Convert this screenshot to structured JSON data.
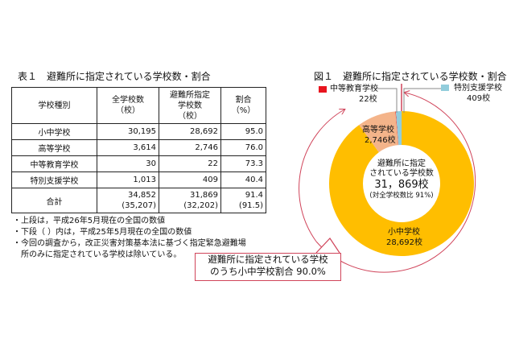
{
  "table": {
    "title": "表１　避難所に指定されている学校数・割合",
    "headers": [
      {
        "line1": "学校種別",
        "line2": "",
        "line3": ""
      },
      {
        "line1": "全学校数",
        "line2": "（校）",
        "line3": ""
      },
      {
        "line1": "避難所指定",
        "line2": "学校数",
        "line3": "（校）"
      },
      {
        "line1": "割合",
        "line2": "（%）",
        "line3": ""
      }
    ],
    "rows": [
      {
        "type": "小中学校",
        "total": "30,195",
        "designated": "28,692",
        "ratio": "95.0"
      },
      {
        "type": "高等学校",
        "total": "3,614",
        "designated": "2,746",
        "ratio": "76.0"
      },
      {
        "type": "中等教育学校",
        "total": "30",
        "designated": "22",
        "ratio": "73.3"
      },
      {
        "type": "特別支援学校",
        "total": "1,013",
        "designated": "409",
        "ratio": "40.4"
      }
    ],
    "total_row": {
      "type": "合計",
      "total": "34,852",
      "total_prev": "(35,207)",
      "designated": "31,869",
      "designated_prev": "(32,202)",
      "ratio": "91.4",
      "ratio_prev": "(91.5)"
    },
    "notes": [
      "・上段は，平成26年5月現在の全国の数値",
      "・下段（ ）内は，平成25年5月現在の全国の数値",
      "・今回の調査から，改正災害対策基本法に基づく指定緊急避難場",
      "　所のみに指定されている学校は除いている。"
    ]
  },
  "figure": {
    "title": "図１　避難所に指定されている学校数・割合",
    "center_line1": "避難所に指定",
    "center_line2": "されている学校数",
    "center_value": "31，869校",
    "center_note": "(対全学校数比 91%)",
    "labels": {
      "elementary_name": "小中学校",
      "elementary_value": "28,692校",
      "high_name": "高等学校",
      "high_value": "2,746校",
      "secondary_name": "中等教育学校",
      "secondary_value": "22校",
      "special_name": "特別支援学校",
      "special_value": "409校"
    },
    "callout_line1": "避難所に指定されている学校",
    "callout_line2": "のうち小中学校割合 90.0%",
    "colors": {
      "elementary": "#FFBE00",
      "high": "#F4B48A",
      "secondary": "#E8141E",
      "special": "#92CDDC",
      "annotation": "#D0445A"
    }
  },
  "chart_data": {
    "type": "pie",
    "variant": "donut",
    "title": "図１　避難所に指定されている学校数・割合",
    "categories": [
      "小中学校",
      "高等学校",
      "中等教育学校",
      "特別支援学校"
    ],
    "values": [
      28692,
      2746,
      22,
      409
    ],
    "total": 31869,
    "center_annotation": "避難所に指定されている学校数 31,869校 (対全学校数比 91%)",
    "callout": "避難所に指定されている学校のうち小中学校割合 90.0%",
    "legend_position": "labels on slices / leader lines",
    "table": {
      "columns": [
        "学校種別",
        "全学校数（校）",
        "避難所指定学校数（校）",
        "割合（%）"
      ],
      "rows": [
        [
          "小中学校",
          30195,
          28692,
          95.0
        ],
        [
          "高等学校",
          3614,
          2746,
          76.0
        ],
        [
          "中等教育学校",
          30,
          22,
          73.3
        ],
        [
          "特別支援学校",
          1013,
          409,
          40.4
        ],
        [
          "合計",
          34852,
          31869,
          91.4
        ]
      ],
      "previous_year_totals": {
        "全学校数": 35207,
        "避難所指定学校数": 32202,
        "割合": 91.5
      }
    }
  }
}
